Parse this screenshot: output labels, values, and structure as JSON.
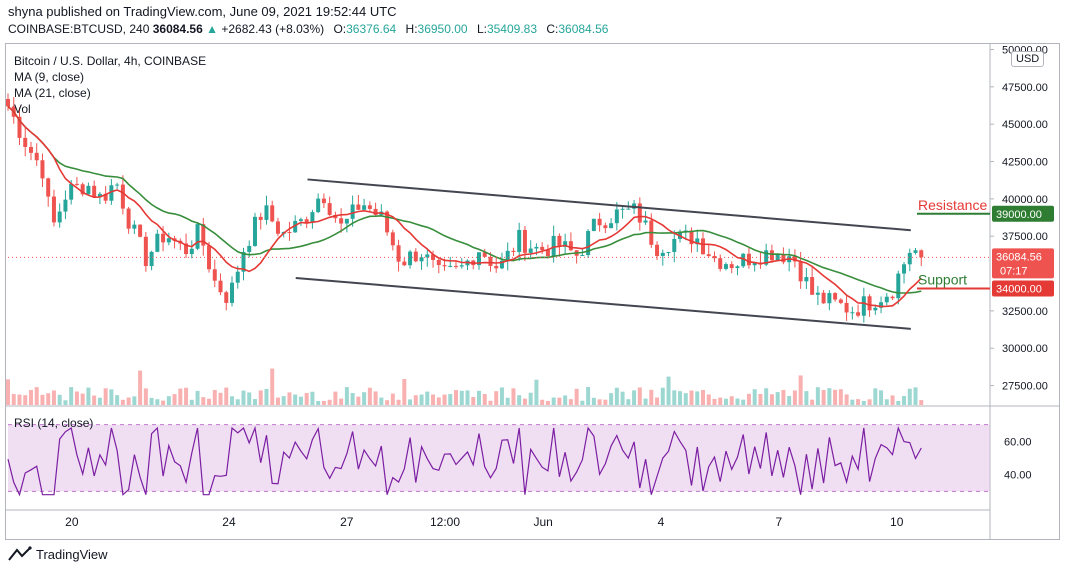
{
  "header": {
    "publisher": "shyna published on TradingView.com, June 09, 2021 19:52:44 UTC",
    "symbol": "COINBASE:BTCUSD, 240",
    "last": "36084.56",
    "change": "+2682.43 (+8.03%)",
    "o_label": "O:",
    "o_value": "36376.64",
    "h_label": "H:",
    "h_value": "36950.00",
    "l_label": "L:",
    "l_value": "35409.83",
    "c_label": "C:",
    "c_value": "36084.56"
  },
  "legend": {
    "title": "Bitcoin / U.S. Dollar, 4h, COINBASE",
    "ma1": "MA (9, close)",
    "ma2": "MA (21, close)",
    "vol": "Vol"
  },
  "rsi_label": "RSI (14, close)",
  "currency": "USD",
  "footer": {
    "brand": "TradingView"
  },
  "colors": {
    "up": "#26a69a",
    "down": "#ef5350",
    "ma9": "#e53935",
    "ma21": "#388e3c",
    "channel": "#434651",
    "rsi": "#7b1fa2",
    "rsi_band": "#e1bee7",
    "resistance_text": "#e53935",
    "support_text": "#2e7d32"
  },
  "chart_data": {
    "type": "candlestick",
    "x_ticks": [
      "20",
      "24",
      "27",
      "12:00",
      "Jun",
      "4",
      "7",
      "10"
    ],
    "y_ticks": [
      "50000.00",
      "47500.00",
      "45000.00",
      "42500.00",
      "40000.00",
      "37500.00",
      "32500.00",
      "30000.00",
      "27500.00"
    ],
    "ylim": [
      26200,
      50300
    ],
    "current_price": {
      "label": "36084.56",
      "countdown": "07:17"
    },
    "levels": [
      {
        "name": "Resistance",
        "value": 39000,
        "label": "39000.00"
      },
      {
        "name": "Support",
        "value": 34000,
        "label": "34000.00"
      }
    ],
    "channel_upper": [
      [
        0.305,
        41300
      ],
      [
        1.0,
        37900
      ]
    ],
    "channel_lower": [
      [
        0.293,
        34700
      ],
      [
        1.0,
        31300
      ]
    ],
    "price_waypoints": [
      [
        0.0,
        46200
      ],
      [
        0.02,
        43500
      ],
      [
        0.035,
        42000
      ],
      [
        0.045,
        38000
      ],
      [
        0.06,
        40500
      ],
      [
        0.08,
        41000
      ],
      [
        0.095,
        40000
      ],
      [
        0.11,
        41200
      ],
      [
        0.125,
        38200
      ],
      [
        0.14,
        36000
      ],
      [
        0.16,
        37700
      ],
      [
        0.18,
        36500
      ],
      [
        0.195,
        37800
      ],
      [
        0.21,
        34500
      ],
      [
        0.225,
        33300
      ],
      [
        0.24,
        36700
      ],
      [
        0.26,
        39300
      ],
      [
        0.28,
        37600
      ],
      [
        0.3,
        38500
      ],
      [
        0.32,
        40500
      ],
      [
        0.34,
        38000
      ],
      [
        0.36,
        39800
      ],
      [
        0.38,
        38700
      ],
      [
        0.4,
        35800
      ],
      [
        0.42,
        36500
      ],
      [
        0.44,
        34800
      ],
      [
        0.46,
        35200
      ],
      [
        0.48,
        36700
      ],
      [
        0.5,
        35300
      ],
      [
        0.52,
        37300
      ],
      [
        0.54,
        36600
      ],
      [
        0.56,
        36900
      ],
      [
        0.58,
        36200
      ],
      [
        0.6,
        38500
      ],
      [
        0.62,
        39000
      ],
      [
        0.64,
        39200
      ],
      [
        0.66,
        36800
      ],
      [
        0.68,
        37300
      ],
      [
        0.7,
        37500
      ],
      [
        0.72,
        36000
      ],
      [
        0.74,
        35700
      ],
      [
        0.76,
        36200
      ],
      [
        0.78,
        36500
      ],
      [
        0.8,
        36100
      ],
      [
        0.82,
        33500
      ],
      [
        0.84,
        33000
      ],
      [
        0.86,
        32600
      ],
      [
        0.88,
        33200
      ],
      [
        0.9,
        33900
      ],
      [
        0.92,
        36800
      ],
      [
        0.93,
        36084
      ]
    ],
    "rsi_ticks": [
      "60.00",
      "40.00"
    ],
    "rsi_ylim": [
      20,
      80
    ],
    "rsi_band": [
      30,
      70
    ],
    "rsi_last": 56
  }
}
